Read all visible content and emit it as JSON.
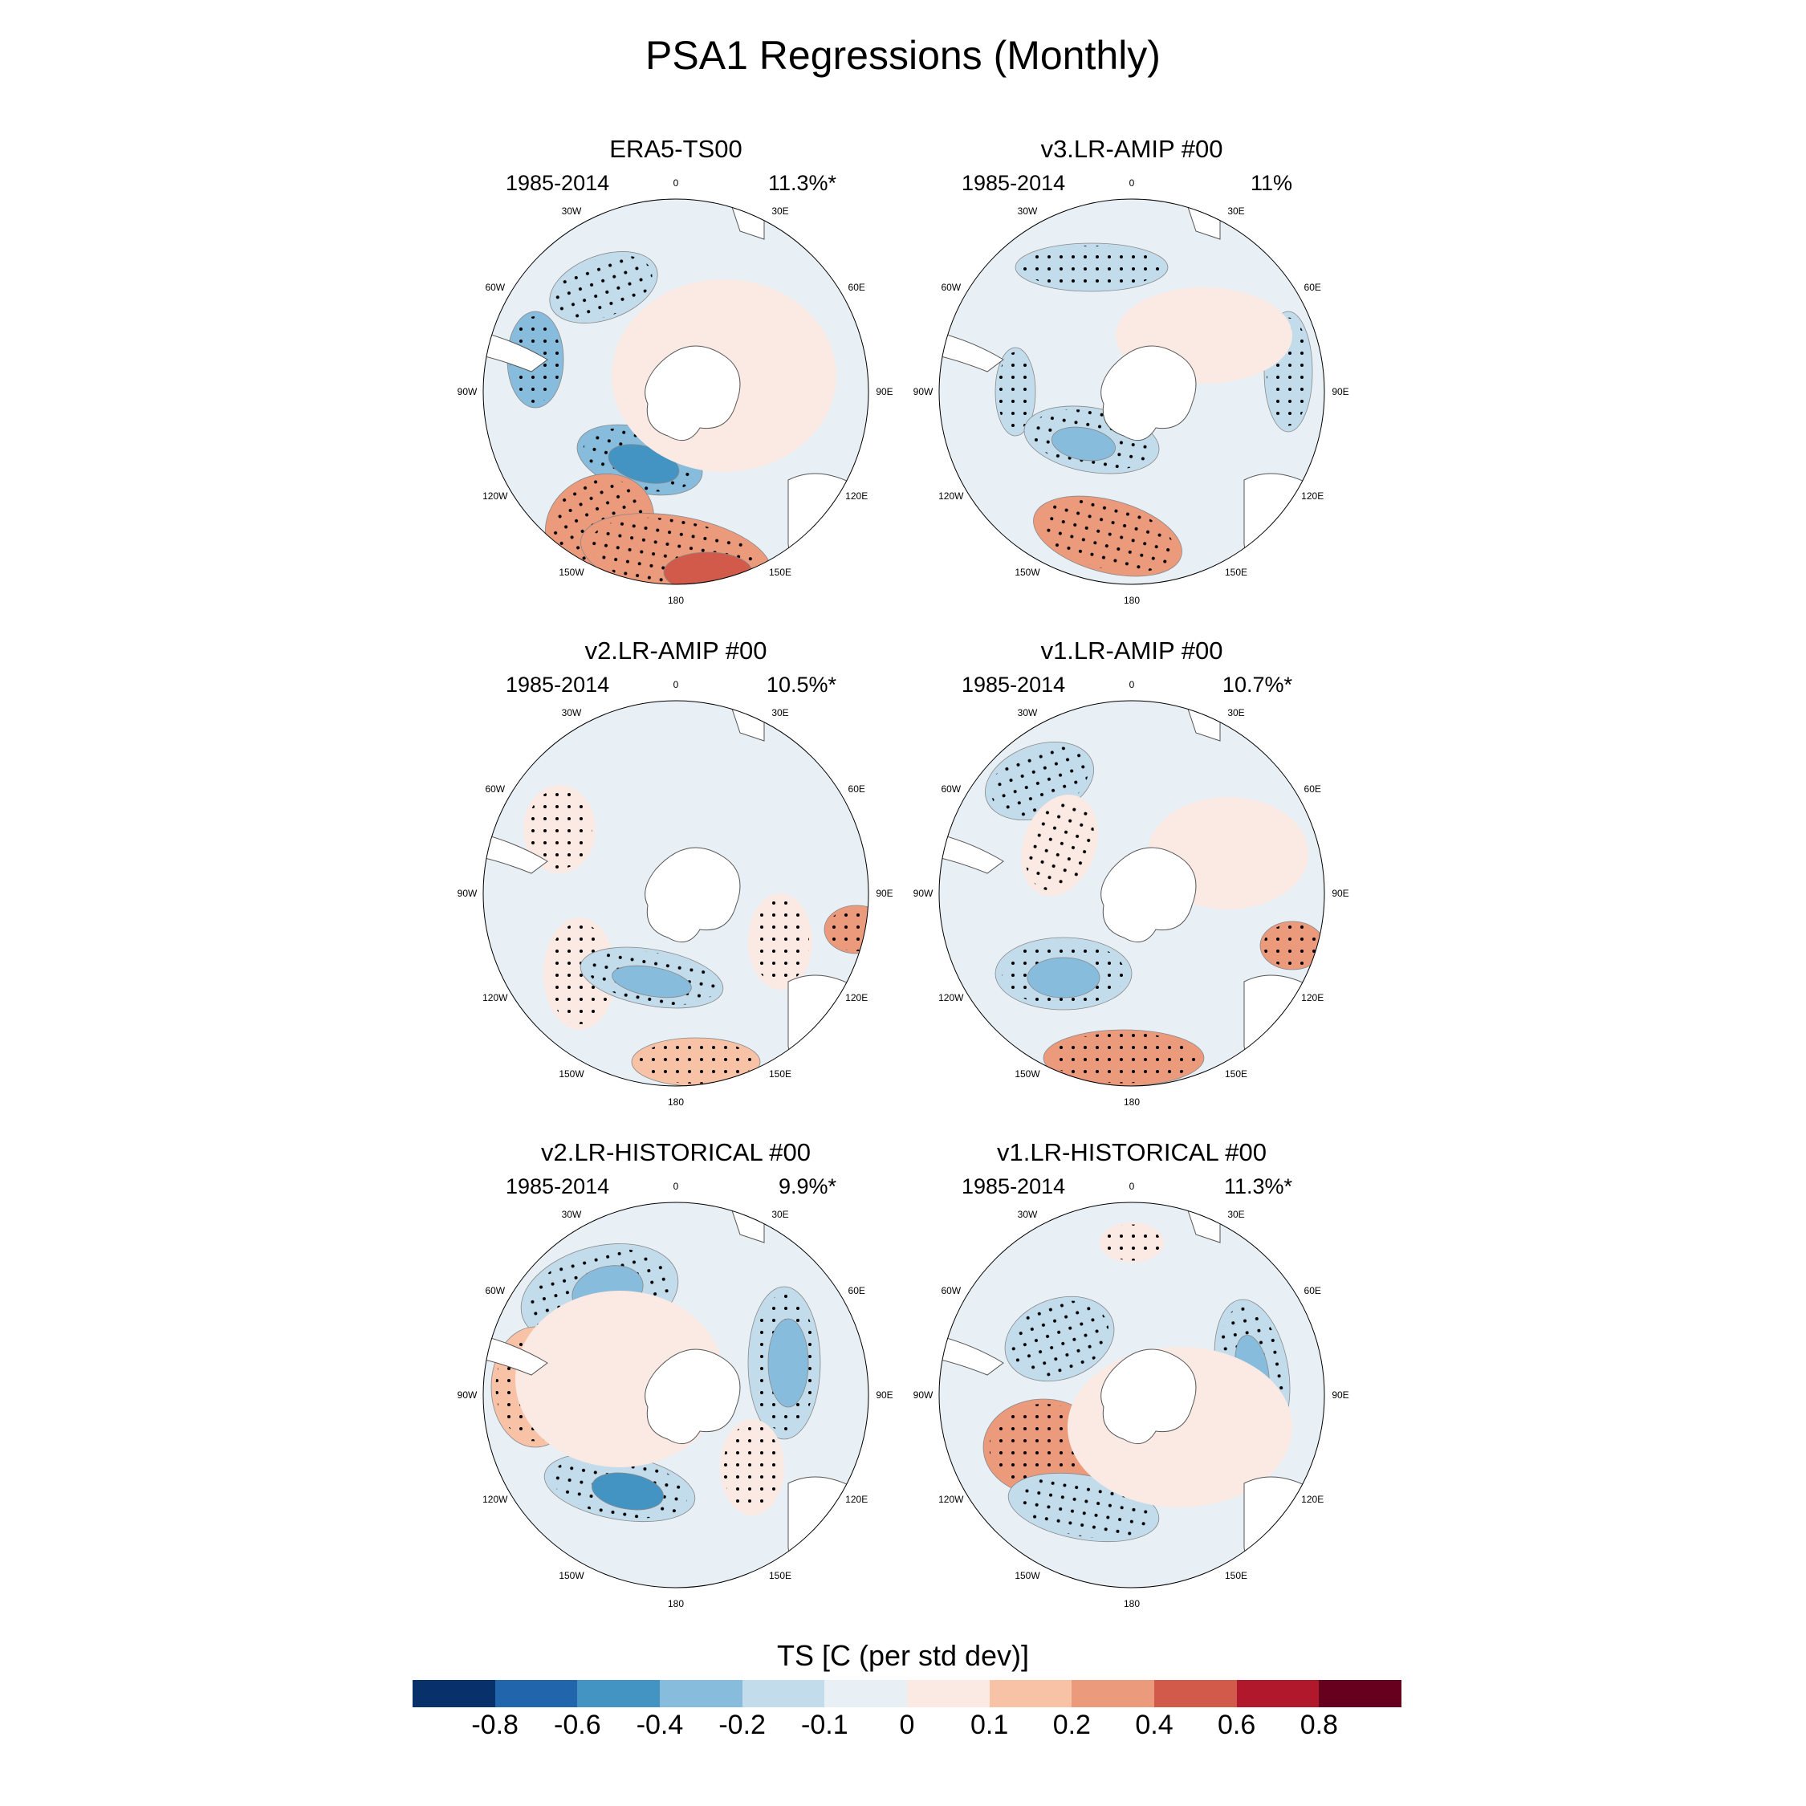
{
  "title": "PSA1 Regressions (Monthly)",
  "panels": [
    {
      "title": "ERA5-TS00",
      "period": "1985-2014",
      "pct": "11.3%*"
    },
    {
      "title": "v3.LR-AMIP  #00",
      "period": "1985-2014",
      "pct": "11%"
    },
    {
      "title": "v2.LR-AMIP  #00",
      "period": "1985-2014",
      "pct": "10.5%*"
    },
    {
      "title": "v1.LR-AMIP  #00",
      "period": "1985-2014",
      "pct": "10.7%*"
    },
    {
      "title": "v2.LR-HISTORICAL  #00",
      "period": "1985-2014",
      "pct": "9.9%*"
    },
    {
      "title": "v1.LR-HISTORICAL  #00",
      "period": "1985-2014",
      "pct": "11.3%*"
    }
  ],
  "lon_labels": [
    "0",
    "30E",
    "60E",
    "90E",
    "120E",
    "150E",
    "180",
    "150W",
    "120W",
    "90W",
    "60W",
    "30W"
  ],
  "colorbar": {
    "title": "TS [C (per std dev)]",
    "colors": [
      "#08306b",
      "#2166ac",
      "#4393c3",
      "#87bcdc",
      "#c2dcec",
      "#e8eff5",
      "#fbe9e3",
      "#f8c2a7",
      "#ec9a7c",
      "#d25a4b",
      "#b2182b",
      "#67001f"
    ],
    "labels": [
      "-0.8",
      "-0.6",
      "-0.4",
      "-0.2",
      "-0.1",
      "0",
      "0.1",
      "0.2",
      "0.4",
      "0.6",
      "0.8"
    ]
  }
}
